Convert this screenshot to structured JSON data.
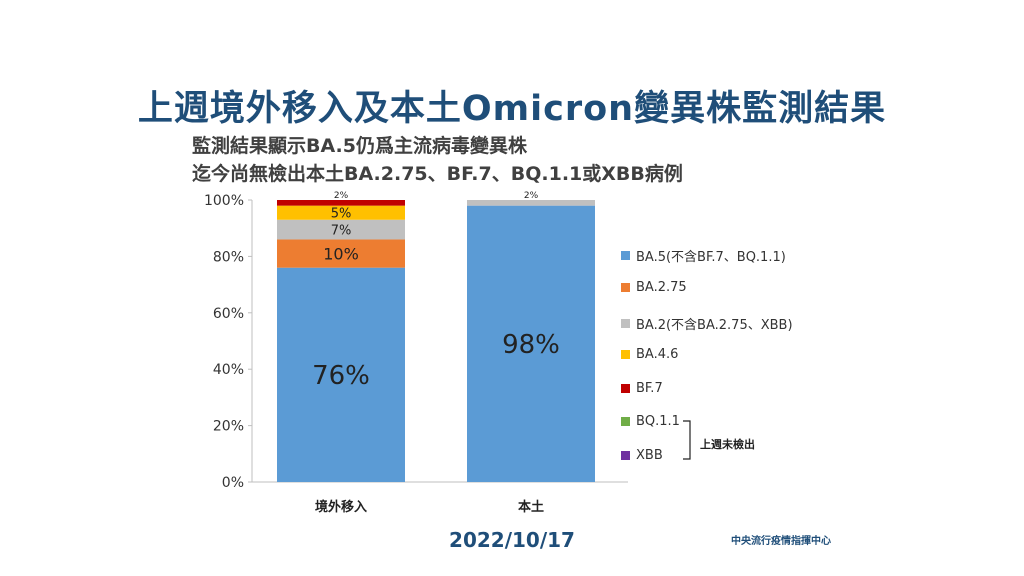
{
  "title": "上週境外移入及本土Omicron變異株監測結果",
  "subtitle_line1": "監測結果顯示BA.5仍爲主流病毒變異株",
  "subtitle_line2": "迄今尚無檢出本土BA.2.75、BF.7、BQ.1.1或XBB病例",
  "footer_date": "2022/10/17",
  "footer_org": "中央流行疫情指揮中心",
  "bracket_label": "上週未檢出",
  "chart_data": {
    "type": "bar",
    "stacked": true,
    "categories": [
      "境外移入",
      "本土"
    ],
    "ylim": [
      0,
      100
    ],
    "yticks": [
      0,
      20,
      40,
      60,
      80,
      100
    ],
    "ytick_labels": [
      "0%",
      "20%",
      "40%",
      "60%",
      "80%",
      "100%"
    ],
    "legend_position": "right",
    "grid": false,
    "series": [
      {
        "name": "BA.5(不含BF.7、BQ.1.1)",
        "color": "#5b9bd5",
        "values": [
          76,
          98
        ],
        "labels": [
          "76%",
          "98%"
        ]
      },
      {
        "name": "BA.2.75",
        "color": "#ed7d31",
        "values": [
          10,
          0
        ],
        "labels": [
          "10%",
          ""
        ]
      },
      {
        "name": "BA.2(不含BA.2.75、XBB)",
        "color": "#c0c0c0",
        "values": [
          7,
          2
        ],
        "labels": [
          "7%",
          "2%"
        ]
      },
      {
        "name": "BA.4.6",
        "color": "#ffc000",
        "values": [
          5,
          0
        ],
        "labels": [
          "5%",
          ""
        ]
      },
      {
        "name": "BF.7",
        "color": "#c00000",
        "values": [
          2,
          0
        ],
        "labels": [
          "2%",
          ""
        ]
      },
      {
        "name": "BQ.1.1",
        "color": "#70ad47",
        "values": [
          0,
          0
        ],
        "labels": [
          "",
          ""
        ]
      },
      {
        "name": "XBB",
        "color": "#7030a0",
        "values": [
          0,
          0
        ],
        "labels": [
          "",
          ""
        ]
      }
    ]
  }
}
